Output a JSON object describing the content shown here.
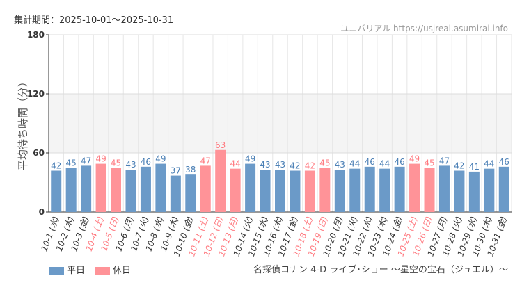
{
  "header": {
    "period": "集計期間：2025-10-01〜2025-10-31",
    "credit": "ユニバリアル https://usjreal.asumirai.info"
  },
  "footer": {
    "attraction": "名探偵コナン 4-D ライブ･ショー ～星空の宝石（ジュエル）～"
  },
  "colors": {
    "weekday": "#6b9ac8",
    "holiday": "#ff9398",
    "weekday_text": "#4a7fb5",
    "holiday_text": "#ff7a80"
  },
  "chart_data": {
    "type": "bar",
    "ylabel": "平均待ち時間（分）",
    "ylim": [
      0,
      180
    ],
    "yticks": [
      0,
      60,
      120,
      180
    ],
    "grid": true,
    "legend": [
      {
        "name": "平日",
        "key": "weekday"
      },
      {
        "name": "休日",
        "key": "holiday"
      }
    ],
    "legend_position": "bottom-left",
    "categories": [
      "10-1 (水)",
      "10-2 (木)",
      "10-3 (金)",
      "10-4 (土)",
      "10-5 (日)",
      "10-6 (月)",
      "10-7 (火)",
      "10-8 (水)",
      "10-9 (木)",
      "10-10 (金)",
      "10-11 (土)",
      "10-12 (日)",
      "10-13 (月)",
      "10-14 (火)",
      "10-15 (水)",
      "10-16 (木)",
      "10-17 (金)",
      "10-18 (土)",
      "10-19 (日)",
      "10-20 (月)",
      "10-21 (火)",
      "10-22 (水)",
      "10-23 (木)",
      "10-24 (金)",
      "10-25 (土)",
      "10-26 (日)",
      "10-27 (月)",
      "10-28 (火)",
      "10-29 (水)",
      "10-30 (木)",
      "10-31 (金)"
    ],
    "values": [
      42,
      45,
      47,
      49,
      45,
      43,
      46,
      49,
      37,
      38,
      47,
      63,
      44,
      49,
      43,
      43,
      42,
      42,
      45,
      43,
      44,
      46,
      44,
      46,
      49,
      45,
      47,
      42,
      41,
      44,
      46
    ],
    "holiday": [
      false,
      false,
      false,
      true,
      true,
      false,
      false,
      false,
      false,
      false,
      true,
      true,
      true,
      false,
      false,
      false,
      false,
      true,
      true,
      false,
      false,
      false,
      false,
      false,
      true,
      true,
      false,
      false,
      false,
      false,
      false
    ]
  }
}
